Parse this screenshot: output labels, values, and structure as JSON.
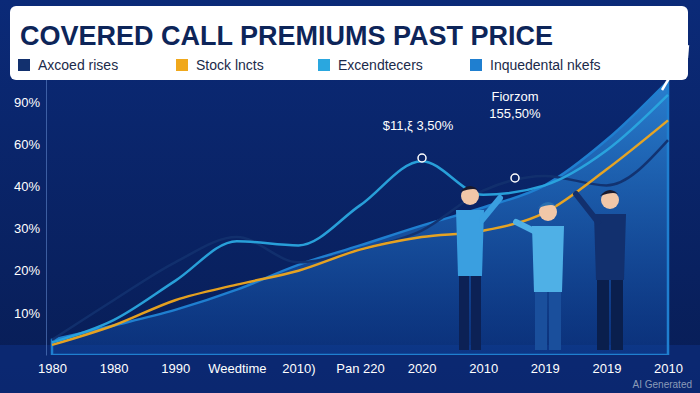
{
  "chart_data": {
    "type": "line",
    "title": "COVERED CALL PREMIUMS PAST PRICE",
    "categories": [
      "1980",
      "1980",
      "1990",
      "Weedtime",
      "2010)",
      "Pan 220",
      "2020",
      "2010",
      "2019",
      "2019",
      "2010"
    ],
    "series": [
      {
        "name": "Axcoed rises",
        "color": "#12306e",
        "type": "line",
        "values": [
          3.6,
          13,
          22,
          28,
          22,
          25,
          29.5,
          39,
          45,
          40.5,
          63
        ]
      },
      {
        "name": "Stock lncts",
        "color": "#f0a81c",
        "type": "line",
        "values": [
          2.4,
          7,
          13,
          16.7,
          20,
          25,
          28,
          29.5,
          33.8,
          48,
          77
        ]
      },
      {
        "name": "Excendtecers",
        "color": "#2aa7df",
        "type": "line",
        "values": [
          3,
          8.3,
          17.6,
          27,
          26,
          35.5,
          52,
          38,
          40.5,
          57,
          91.7
        ]
      },
      {
        "name": "Inquedental nkefs",
        "color": "#1f7fd0",
        "type": "area",
        "values": [
          3.6,
          7,
          10.7,
          15.5,
          21.4,
          26,
          30.7,
          35,
          40.5,
          63,
          95
        ]
      }
    ],
    "ylim": [
      0,
      100
    ],
    "yticks": [
      {
        "value": 10,
        "label": "10%"
      },
      {
        "value": 20,
        "label": "20%"
      },
      {
        "value": 30,
        "label": "30%"
      },
      {
        "value": 40,
        "label": "40%"
      },
      {
        "value": 60,
        "label": "60%"
      },
      {
        "value": 90,
        "label": "90%"
      }
    ],
    "grid": false,
    "legend": "top",
    "annotations": [
      "$11,ξ 3,50%",
      "Fiorzom",
      "155,50%",
      "AI Generated"
    ]
  }
}
